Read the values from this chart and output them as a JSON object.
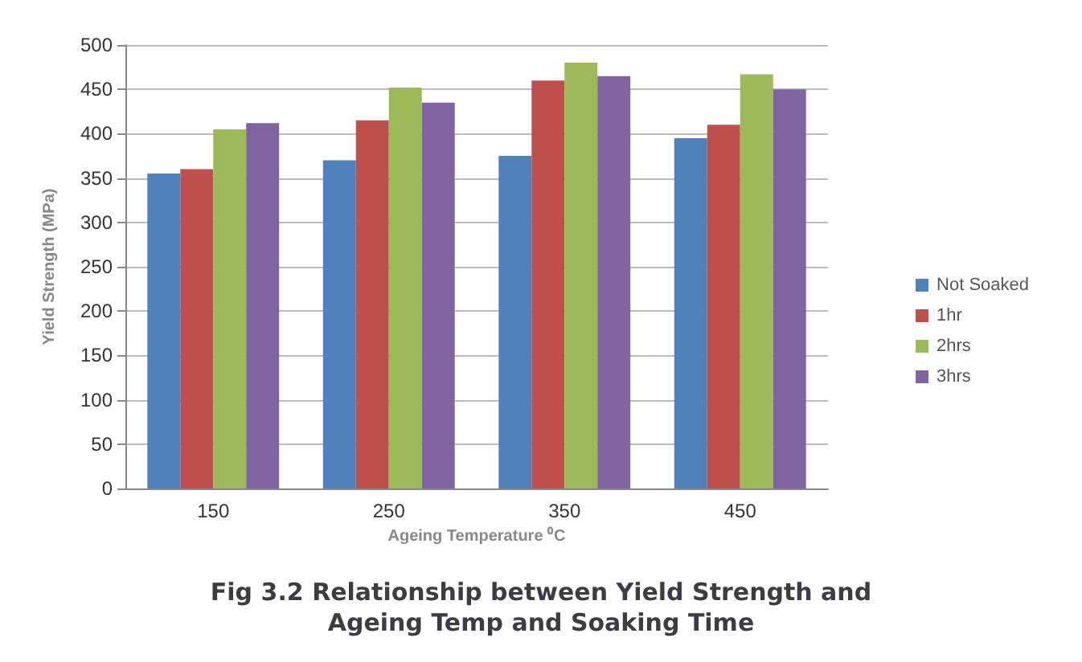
{
  "chart_data": {
    "type": "bar",
    "title": "Fig 3.2 Relationship between Yield Strength and\nAgeing Temp and Soaking Time",
    "xlabel": "Ageing Temperature ⁰C",
    "ylabel": "Yield Strength (MPa)",
    "categories": [
      "150",
      "250",
      "350",
      "450"
    ],
    "series": [
      {
        "name": "Not Soaked",
        "color": "#4f81bd",
        "values": [
          355,
          370,
          375,
          395
        ]
      },
      {
        "name": "1hr",
        "color": "#c0504d",
        "values": [
          360,
          415,
          460,
          410
        ]
      },
      {
        "name": "2hrs",
        "color": "#9bbb59",
        "values": [
          405,
          452,
          480,
          467
        ]
      },
      {
        "name": "3hrs",
        "color": "#8064a2",
        "values": [
          412,
          435,
          465,
          450
        ]
      }
    ],
    "ylim": [
      0,
      500
    ],
    "yticks": [
      0,
      50,
      100,
      150,
      200,
      250,
      300,
      350,
      400,
      450,
      500
    ],
    "grid": "y",
    "legend": "right"
  }
}
